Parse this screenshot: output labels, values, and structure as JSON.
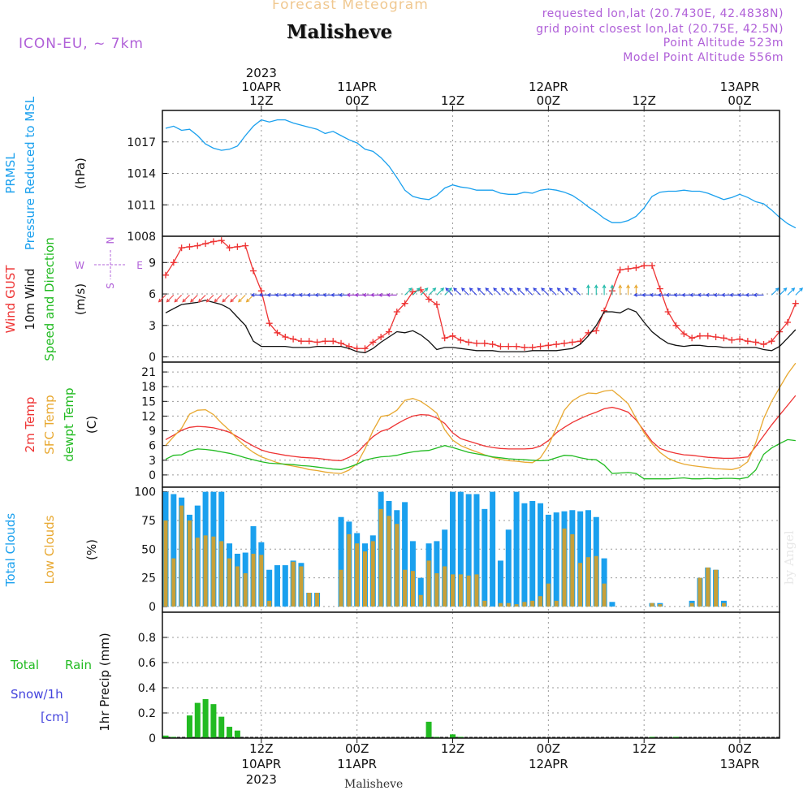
{
  "header": {
    "title": "Forecast Meteogram",
    "location": "Malisheve",
    "model": "ICON-EU, ~ 7km",
    "requested": "requested lon,lat (20.7430E, 42.4838N)",
    "closest": "grid point closest lon,lat (20.75E, 42.5N)",
    "point_alt": "Point Altitude 523m",
    "model_alt": "Model Point Altitude 556m"
  },
  "footer": {
    "location": "Malisheve",
    "watermark": "by Angel"
  },
  "time_axis": {
    "top": [
      {
        "t": 12,
        "lines": [
          "2023",
          "10APR",
          "12Z"
        ]
      },
      {
        "t": 24,
        "lines": [
          "11APR",
          "00Z"
        ]
      },
      {
        "t": 36,
        "lines": [
          "12Z"
        ]
      },
      {
        "t": 48,
        "lines": [
          "12APR",
          "00Z"
        ]
      },
      {
        "t": 60,
        "lines": [
          "12Z"
        ]
      },
      {
        "t": 72,
        "lines": [
          "13APR",
          "00Z"
        ]
      }
    ],
    "bottom": [
      {
        "t": 12,
        "lines": [
          "12Z",
          "10APR",
          "2023"
        ]
      },
      {
        "t": 24,
        "lines": [
          "00Z",
          "11APR"
        ]
      },
      {
        "t": 36,
        "lines": [
          "12Z"
        ]
      },
      {
        "t": 48,
        "lines": [
          "00Z",
          "12APR"
        ]
      },
      {
        "t": 60,
        "lines": [
          "12Z"
        ]
      },
      {
        "t": 72,
        "lines": [
          "00Z",
          "13APR"
        ]
      }
    ]
  },
  "chart_data": [
    {
      "type": "line",
      "panel": "pressure",
      "ylabels": [
        {
          "text": "PRMSL",
          "color": "#1aa0ee"
        },
        {
          "text": "Pressure Reduced to MSL",
          "color": "#1aa0ee"
        },
        {
          "text": "(hPa)",
          "color": "#111111"
        }
      ],
      "ylim": [
        1008,
        1020
      ],
      "yticks": [
        1008,
        1011,
        1014,
        1017
      ],
      "grid": true,
      "series": [
        {
          "color": "#1aa0ee",
          "values": [
            1018.3,
            1018.5,
            1018.1,
            1018.2,
            1017.6,
            1016.8,
            1016.4,
            1016.2,
            1016.3,
            1016.6,
            1017.6,
            1018.5,
            1019.1,
            1018.9,
            1019.1,
            1019.1,
            1018.8,
            1018.6,
            1018.4,
            1018.2,
            1017.8,
            1018.0,
            1017.6,
            1017.2,
            1016.9,
            1016.3,
            1016.1,
            1015.5,
            1014.7,
            1013.6,
            1012.4,
            1011.8,
            1011.6,
            1011.5,
            1011.9,
            1012.6,
            1012.9,
            1012.7,
            1012.6,
            1012.4,
            1012.4,
            1012.4,
            1012.1,
            1012.0,
            1012.0,
            1012.2,
            1012.1,
            1012.4,
            1012.5,
            1012.4,
            1012.2,
            1011.9,
            1011.4,
            1010.8,
            1010.3,
            1009.7,
            1009.3,
            1009.3,
            1009.5,
            1009.9,
            1010.7,
            1011.8,
            1012.2,
            1012.3,
            1012.3,
            1012.4,
            1012.3,
            1012.3,
            1012.1,
            1011.8,
            1011.5,
            1011.7,
            1012.0,
            1011.7,
            1011.3,
            1011.1,
            1010.5,
            1009.8,
            1009.2,
            1008.8
          ]
        }
      ]
    },
    {
      "type": "line",
      "panel": "wind",
      "ylabels": [
        {
          "text": "Wind GUST",
          "color": "#ee3333"
        },
        {
          "text": "10m Wind",
          "color": "#111111"
        },
        {
          "text": "Speed and Direction",
          "color": "#22bb22"
        },
        {
          "text": "(m/s)",
          "color": "#111111"
        }
      ],
      "compass": {
        "w": "W",
        "e": "E",
        "n": "N",
        "s": "S",
        "color": "#b060d8"
      },
      "ylim": [
        -0.5,
        11.5
      ],
      "yticks": [
        0,
        3,
        6,
        9
      ],
      "grid": true,
      "series": [
        {
          "color": "#ee3333",
          "marker": "+",
          "values": [
            7.8,
            9.0,
            10.4,
            10.5,
            10.6,
            10.8,
            11.0,
            11.1,
            10.4,
            10.5,
            10.6,
            8.2,
            6.3,
            3.2,
            2.3,
            1.9,
            1.7,
            1.5,
            1.5,
            1.4,
            1.5,
            1.5,
            1.3,
            1.0,
            0.8,
            0.8,
            1.4,
            1.9,
            2.4,
            4.3,
            5.1,
            6.2,
            6.4,
            5.5,
            5.0,
            1.8,
            2.0,
            1.6,
            1.4,
            1.3,
            1.3,
            1.2,
            1.0,
            1.0,
            1.0,
            0.9,
            0.9,
            1.0,
            1.1,
            1.2,
            1.3,
            1.4,
            1.5,
            2.3,
            2.5,
            4.4,
            6.3,
            8.3,
            8.4,
            8.5,
            8.7,
            8.7,
            6.5,
            4.3,
            3.0,
            2.2,
            1.8,
            2.0,
            2.0,
            1.9,
            1.8,
            1.6,
            1.7,
            1.5,
            1.4,
            1.2,
            1.5,
            2.4,
            3.3,
            5.1
          ]
        },
        {
          "color": "#111111",
          "marker": "",
          "values": [
            4.2,
            4.6,
            5.0,
            5.1,
            5.2,
            5.4,
            5.2,
            5.0,
            4.6,
            3.8,
            3.0,
            1.5,
            1.0,
            1.0,
            1.0,
            1.0,
            0.9,
            0.9,
            0.9,
            1.0,
            1.0,
            1.0,
            1.0,
            0.8,
            0.5,
            0.4,
            0.8,
            1.4,
            1.9,
            2.4,
            2.3,
            2.5,
            2.1,
            1.5,
            0.7,
            0.9,
            0.9,
            0.8,
            0.7,
            0.6,
            0.6,
            0.6,
            0.5,
            0.5,
            0.5,
            0.5,
            0.6,
            0.6,
            0.6,
            0.6,
            0.7,
            0.8,
            1.2,
            2.0,
            3.0,
            4.3,
            4.3,
            4.2,
            4.6,
            4.3,
            3.3,
            2.4,
            1.8,
            1.3,
            1.1,
            1.0,
            1.1,
            1.1,
            1.0,
            1.0,
            0.9,
            0.9,
            0.9,
            0.9,
            0.9,
            0.7,
            0.6,
            1.0,
            1.8,
            2.6
          ]
        }
      ]
    },
    {
      "type": "line",
      "panel": "temperature",
      "ylabels": [
        {
          "text": "2m Temp",
          "color": "#ee3333"
        },
        {
          "text": "SFC Temp",
          "color": "#e8a830"
        },
        {
          "text": "dewpt Temp",
          "color": "#22bb22"
        },
        {
          "text": "(C)",
          "color": "#111111"
        }
      ],
      "ylim": [
        -2.5,
        23
      ],
      "yticks": [
        0,
        3,
        6,
        9,
        12,
        15,
        18,
        21
      ],
      "grid": true,
      "series": [
        {
          "color": "#ee3333",
          "values": [
            7.2,
            8.1,
            9.1,
            9.7,
            9.9,
            9.8,
            9.6,
            9.2,
            8.7,
            7.8,
            6.8,
            5.9,
            5.1,
            4.6,
            4.3,
            4.0,
            3.8,
            3.6,
            3.5,
            3.4,
            3.2,
            3.0,
            2.9,
            3.6,
            4.5,
            6.2,
            7.8,
            8.9,
            9.4,
            10.4,
            11.3,
            12.0,
            12.3,
            12.2,
            11.6,
            10.5,
            8.6,
            7.4,
            6.9,
            6.4,
            5.9,
            5.6,
            5.4,
            5.3,
            5.3,
            5.3,
            5.4,
            5.9,
            7.0,
            8.6,
            9.7,
            10.7,
            11.5,
            12.2,
            12.8,
            13.5,
            13.8,
            13.4,
            12.8,
            11.2,
            9.0,
            6.8,
            5.4,
            4.8,
            4.4,
            4.1,
            4.0,
            3.8,
            3.6,
            3.5,
            3.4,
            3.4,
            3.5,
            3.7,
            5.8,
            8.0,
            10.2,
            12.2,
            14.2,
            16.2
          ]
        },
        {
          "color": "#e8a830",
          "values": [
            6.0,
            7.8,
            9.5,
            12.4,
            13.2,
            13.3,
            12.3,
            10.6,
            9.1,
            7.3,
            5.8,
            4.6,
            3.7,
            3.1,
            2.5,
            2.1,
            1.8,
            1.5,
            1.1,
            0.9,
            0.6,
            0.4,
            0.3,
            1.0,
            2.3,
            5.3,
            9.0,
            11.9,
            12.2,
            13.2,
            15.2,
            15.6,
            15.0,
            13.9,
            12.6,
            9.2,
            7.1,
            6.0,
            5.3,
            4.7,
            4.1,
            3.6,
            3.2,
            2.9,
            2.8,
            2.6,
            2.5,
            3.5,
            6.0,
            9.6,
            13.2,
            15.1,
            16.1,
            16.7,
            16.6,
            17.1,
            17.3,
            16.0,
            14.5,
            11.5,
            8.6,
            6.4,
            4.6,
            3.4,
            2.7,
            2.2,
            1.9,
            1.7,
            1.5,
            1.3,
            1.2,
            1.1,
            1.5,
            2.7,
            6.5,
            11.5,
            15.0,
            17.8,
            20.6,
            22.8
          ]
        },
        {
          "color": "#22bb22",
          "values": [
            3.2,
            4.0,
            4.1,
            4.9,
            5.3,
            5.2,
            5.0,
            4.7,
            4.4,
            4.0,
            3.5,
            3.1,
            2.7,
            2.4,
            2.3,
            2.2,
            2.1,
            1.9,
            1.8,
            1.6,
            1.4,
            1.2,
            1.1,
            1.6,
            2.2,
            3.0,
            3.4,
            3.7,
            3.8,
            4.0,
            4.4,
            4.7,
            4.9,
            5.0,
            5.5,
            6.0,
            5.6,
            5.1,
            4.6,
            4.3,
            4.0,
            3.7,
            3.5,
            3.3,
            3.2,
            3.1,
            3.0,
            2.9,
            3.0,
            3.5,
            4.0,
            3.9,
            3.5,
            3.2,
            3.1,
            2.0,
            0.3,
            0.4,
            0.5,
            0.3,
            -0.8,
            -0.8,
            -0.8,
            -0.8,
            -0.7,
            -0.6,
            -0.8,
            -0.8,
            -0.7,
            -0.8,
            -0.7,
            -0.7,
            -0.8,
            -0.5,
            1.0,
            4.2,
            5.5,
            6.4,
            7.2,
            7.0
          ]
        }
      ]
    },
    {
      "type": "bar",
      "panel": "clouds",
      "ylabels": [
        {
          "text": "Total Clouds",
          "color": "#1aa0ee"
        },
        {
          "text": "Low Clouds",
          "color": "#e8a830"
        },
        {
          "text": "(%)",
          "color": "#111111"
        }
      ],
      "ylim": [
        -5,
        104
      ],
      "yticks": [
        0,
        25,
        50,
        75,
        100
      ],
      "grid": true,
      "series": [
        {
          "name": "total",
          "color": "#1aa0ee",
          "values": [
            100,
            98,
            95,
            80,
            88,
            100,
            100,
            100,
            55,
            46,
            47,
            70,
            56,
            32,
            36,
            36,
            40,
            38,
            12,
            12,
            0,
            0,
            78,
            74,
            64,
            55,
            62,
            100,
            92,
            84,
            91,
            57,
            25,
            55,
            57,
            67,
            100,
            100,
            98,
            98,
            85,
            100,
            40,
            67,
            100,
            90,
            92,
            90,
            80,
            82,
            83,
            84,
            83,
            84,
            78,
            42,
            4,
            0,
            0,
            0,
            0,
            3,
            3,
            0,
            0,
            0,
            5,
            25,
            34,
            32,
            5,
            0,
            0,
            0,
            0,
            0,
            0,
            0,
            0,
            0
          ]
        },
        {
          "name": "low",
          "color": "#c8a038",
          "values": [
            75,
            42,
            88,
            75,
            60,
            62,
            61,
            57,
            42,
            35,
            29,
            46,
            45,
            5,
            0,
            0,
            39,
            35,
            12,
            12,
            0,
            0,
            32,
            63,
            55,
            48,
            57,
            85,
            79,
            72,
            32,
            31,
            10,
            40,
            29,
            35,
            28,
            28,
            27,
            28,
            5,
            0,
            3,
            3,
            2,
            4,
            5,
            9,
            20,
            5,
            68,
            63,
            38,
            43,
            44,
            20,
            0,
            0,
            0,
            0,
            0,
            3,
            2,
            0,
            0,
            0,
            3,
            25,
            34,
            32,
            3,
            0,
            0,
            0,
            0,
            0,
            0,
            0,
            0,
            0
          ]
        }
      ]
    },
    {
      "type": "bar",
      "panel": "precip",
      "ylabels": [
        {
          "text": "Total",
          "color": "#22bb22"
        },
        {
          "text": "Rain",
          "color": "#22bb22"
        },
        {
          "text": "Snow/1h",
          "color": "#4444dd"
        },
        {
          "text": "[cm]",
          "color": "#4444dd"
        },
        {
          "text": "1hr Precip (mm)",
          "color": "#111111"
        }
      ],
      "ylim": [
        0,
        1.0
      ],
      "yticks": [
        0,
        0.2,
        0.4,
        0.6,
        0.8
      ],
      "ytick_labels": [
        "0",
        "0.2",
        "0.4",
        "0.6",
        "0.8"
      ],
      "grid": true,
      "series": [
        {
          "name": "rain",
          "color": "#22bb22",
          "values": [
            0.02,
            0.01,
            0,
            0.18,
            0.28,
            0.31,
            0.27,
            0.17,
            0.09,
            0.06,
            0,
            0,
            0,
            0,
            0,
            0,
            0,
            0,
            0,
            0,
            0,
            0,
            0,
            0,
            0,
            0,
            0,
            0,
            0,
            0,
            0,
            0,
            0,
            0.13,
            0.01,
            0,
            0.03,
            0.01,
            0,
            0,
            0,
            0,
            0,
            0,
            0,
            0,
            0,
            0,
            0,
            0,
            0,
            0,
            0,
            0,
            0,
            0,
            0,
            0,
            0,
            0,
            0,
            0.01,
            0,
            0,
            0.01,
            0,
            0,
            0,
            0,
            0,
            0,
            0,
            0,
            0,
            0,
            0,
            0,
            0,
            0,
            0
          ]
        }
      ]
    }
  ],
  "wind_barbs": [
    {
      "t0": 0,
      "t1": 10,
      "dir": "SW",
      "color": "#ee4444"
    },
    {
      "t0": 10,
      "t1": 12,
      "dir": "SW",
      "color": "#e8a830"
    },
    {
      "t0": 12,
      "t1": 24,
      "dir": "W",
      "color": "#3344dd"
    },
    {
      "t0": 24,
      "t1": 30,
      "dir": "W",
      "color": "#9933cc"
    },
    {
      "t0": 30,
      "t1": 36,
      "dir": "NE",
      "color": "#22bbaa"
    },
    {
      "t0": 36,
      "t1": 53,
      "dir": "NW",
      "color": "#3344dd"
    },
    {
      "t0": 53,
      "t1": 57,
      "dir": "N",
      "color": "#22bbaa"
    },
    {
      "t0": 57,
      "t1": 60,
      "dir": "N",
      "color": "#e8a830"
    },
    {
      "t0": 60,
      "t1": 76,
      "dir": "W",
      "color": "#3344dd"
    },
    {
      "t0": 76,
      "t1": 80,
      "dir": "NE",
      "color": "#1aa0ee"
    }
  ]
}
